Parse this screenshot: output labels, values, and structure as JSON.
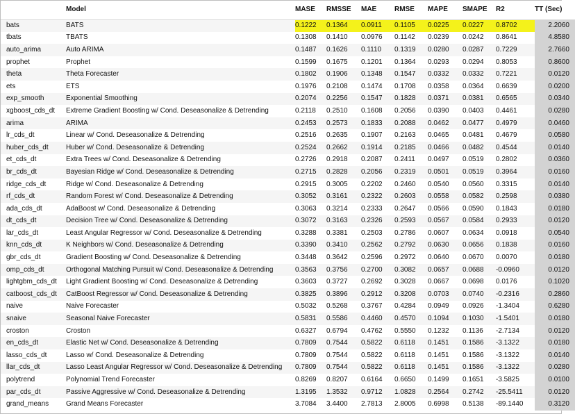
{
  "columns": [
    "",
    "Model",
    "MASE",
    "RMSSE",
    "MAE",
    "RMSE",
    "MAPE",
    "SMAPE",
    "R2",
    "TT (Sec)"
  ],
  "highlight_color": "#f4f21b",
  "tt_column_color": "#d3d3d3",
  "rows": [
    [
      "bats",
      "BATS",
      "0.1222",
      "0.1364",
      "0.0911",
      "0.1105",
      "0.0225",
      "0.0227",
      "0.8702",
      "2.2060"
    ],
    [
      "tbats",
      "TBATS",
      "0.1308",
      "0.1410",
      "0.0976",
      "0.1142",
      "0.0239",
      "0.0242",
      "0.8641",
      "4.8580"
    ],
    [
      "auto_arima",
      "Auto ARIMA",
      "0.1487",
      "0.1626",
      "0.1110",
      "0.1319",
      "0.0280",
      "0.0287",
      "0.7229",
      "2.7660"
    ],
    [
      "prophet",
      "Prophet",
      "0.1599",
      "0.1675",
      "0.1201",
      "0.1364",
      "0.0293",
      "0.0294",
      "0.8053",
      "0.8600"
    ],
    [
      "theta",
      "Theta Forecaster",
      "0.1802",
      "0.1906",
      "0.1348",
      "0.1547",
      "0.0332",
      "0.0332",
      "0.7221",
      "0.0120"
    ],
    [
      "ets",
      "ETS",
      "0.1976",
      "0.2108",
      "0.1474",
      "0.1708",
      "0.0358",
      "0.0364",
      "0.6639",
      "0.0200"
    ],
    [
      "exp_smooth",
      "Exponential Smoothing",
      "0.2074",
      "0.2256",
      "0.1547",
      "0.1828",
      "0.0371",
      "0.0381",
      "0.6565",
      "0.0340"
    ],
    [
      "xgboost_cds_dt",
      "Extreme Gradient Boosting w/ Cond. Deseasonalize & Detrending",
      "0.2118",
      "0.2510",
      "0.1608",
      "0.2056",
      "0.0390",
      "0.0403",
      "0.4461",
      "0.0280"
    ],
    [
      "arima",
      "ARIMA",
      "0.2453",
      "0.2573",
      "0.1833",
      "0.2088",
      "0.0462",
      "0.0477",
      "0.4979",
      "0.0460"
    ],
    [
      "lr_cds_dt",
      "Linear w/ Cond. Deseasonalize & Detrending",
      "0.2516",
      "0.2635",
      "0.1907",
      "0.2163",
      "0.0465",
      "0.0481",
      "0.4679",
      "0.0580"
    ],
    [
      "huber_cds_dt",
      "Huber w/ Cond. Deseasonalize & Detrending",
      "0.2524",
      "0.2662",
      "0.1914",
      "0.2185",
      "0.0466",
      "0.0482",
      "0.4544",
      "0.0140"
    ],
    [
      "et_cds_dt",
      "Extra Trees w/ Cond. Deseasonalize & Detrending",
      "0.2726",
      "0.2918",
      "0.2087",
      "0.2411",
      "0.0497",
      "0.0519",
      "0.2802",
      "0.0360"
    ],
    [
      "br_cds_dt",
      "Bayesian Ridge w/ Cond. Deseasonalize & Detrending",
      "0.2715",
      "0.2828",
      "0.2056",
      "0.2319",
      "0.0501",
      "0.0519",
      "0.3964",
      "0.0160"
    ],
    [
      "ridge_cds_dt",
      "Ridge w/ Cond. Deseasonalize & Detrending",
      "0.2915",
      "0.3005",
      "0.2202",
      "0.2460",
      "0.0540",
      "0.0560",
      "0.3315",
      "0.0140"
    ],
    [
      "rf_cds_dt",
      "Random Forest w/ Cond. Deseasonalize & Detrending",
      "0.3052",
      "0.3161",
      "0.2322",
      "0.2603",
      "0.0558",
      "0.0582",
      "0.2598",
      "0.0380"
    ],
    [
      "ada_cds_dt",
      "AdaBoost w/ Cond. Deseasonalize & Detrending",
      "0.3063",
      "0.3214",
      "0.2333",
      "0.2647",
      "0.0566",
      "0.0590",
      "0.1843",
      "0.0180"
    ],
    [
      "dt_cds_dt",
      "Decision Tree w/ Cond. Deseasonalize & Detrending",
      "0.3072",
      "0.3163",
      "0.2326",
      "0.2593",
      "0.0567",
      "0.0584",
      "0.2933",
      "0.0120"
    ],
    [
      "lar_cds_dt",
      "Least Angular Regressor w/ Cond. Deseasonalize & Detrending",
      "0.3288",
      "0.3381",
      "0.2503",
      "0.2786",
      "0.0607",
      "0.0634",
      "0.0918",
      "0.0540"
    ],
    [
      "knn_cds_dt",
      "K Neighbors w/ Cond. Deseasonalize & Detrending",
      "0.3390",
      "0.3410",
      "0.2562",
      "0.2792",
      "0.0630",
      "0.0656",
      "0.1838",
      "0.0160"
    ],
    [
      "gbr_cds_dt",
      "Gradient Boosting w/ Cond. Deseasonalize & Detrending",
      "0.3448",
      "0.3642",
      "0.2596",
      "0.2972",
      "0.0640",
      "0.0670",
      "0.0070",
      "0.0180"
    ],
    [
      "omp_cds_dt",
      "Orthogonal Matching Pursuit w/ Cond. Deseasonalize & Detrending",
      "0.3563",
      "0.3756",
      "0.2700",
      "0.3082",
      "0.0657",
      "0.0688",
      "-0.0960",
      "0.0120"
    ],
    [
      "lightgbm_cds_dt",
      "Light Gradient Boosting w/ Cond. Deseasonalize & Detrending",
      "0.3603",
      "0.3727",
      "0.2692",
      "0.3028",
      "0.0667",
      "0.0698",
      "0.0176",
      "0.1020"
    ],
    [
      "catboost_cds_dt",
      "CatBoost Regressor w/ Cond. Deseasonalize & Detrending",
      "0.3825",
      "0.3896",
      "0.2912",
      "0.3208",
      "0.0703",
      "0.0740",
      "-0.2316",
      "0.2860"
    ],
    [
      "naive",
      "Naive Forecaster",
      "0.5032",
      "0.5268",
      "0.3767",
      "0.4284",
      "0.0949",
      "0.0926",
      "-1.3404",
      "0.6280"
    ],
    [
      "snaive",
      "Seasonal Naive Forecaster",
      "0.5831",
      "0.5586",
      "0.4460",
      "0.4570",
      "0.1094",
      "0.1030",
      "-1.5401",
      "0.0180"
    ],
    [
      "croston",
      "Croston",
      "0.6327",
      "0.6794",
      "0.4762",
      "0.5550",
      "0.1232",
      "0.1136",
      "-2.7134",
      "0.0120"
    ],
    [
      "en_cds_dt",
      "Elastic Net w/ Cond. Deseasonalize & Detrending",
      "0.7809",
      "0.7544",
      "0.5822",
      "0.6118",
      "0.1451",
      "0.1586",
      "-3.1322",
      "0.0180"
    ],
    [
      "lasso_cds_dt",
      "Lasso w/ Cond. Deseasonalize & Detrending",
      "0.7809",
      "0.7544",
      "0.5822",
      "0.6118",
      "0.1451",
      "0.1586",
      "-3.1322",
      "0.0140"
    ],
    [
      "llar_cds_dt",
      "Lasso Least Angular Regressor w/ Cond. Deseasonalize & Detrending",
      "0.7809",
      "0.7544",
      "0.5822",
      "0.6118",
      "0.1451",
      "0.1586",
      "-3.1322",
      "0.0280"
    ],
    [
      "polytrend",
      "Polynomial Trend Forecaster",
      "0.8269",
      "0.8207",
      "0.6164",
      "0.6650",
      "0.1499",
      "0.1651",
      "-3.5825",
      "0.0100"
    ],
    [
      "par_cds_dt",
      "Passive Aggressive w/ Cond. Deseasonalize & Detrending",
      "1.3195",
      "1.3532",
      "0.9712",
      "1.0828",
      "0.2564",
      "0.2742",
      "-25.5411",
      "0.0120"
    ],
    [
      "grand_means",
      "Grand Means Forecaster",
      "3.7084",
      "3.4400",
      "2.7813",
      "2.8005",
      "0.6998",
      "0.5138",
      "-89.1440",
      "0.3120"
    ]
  ]
}
